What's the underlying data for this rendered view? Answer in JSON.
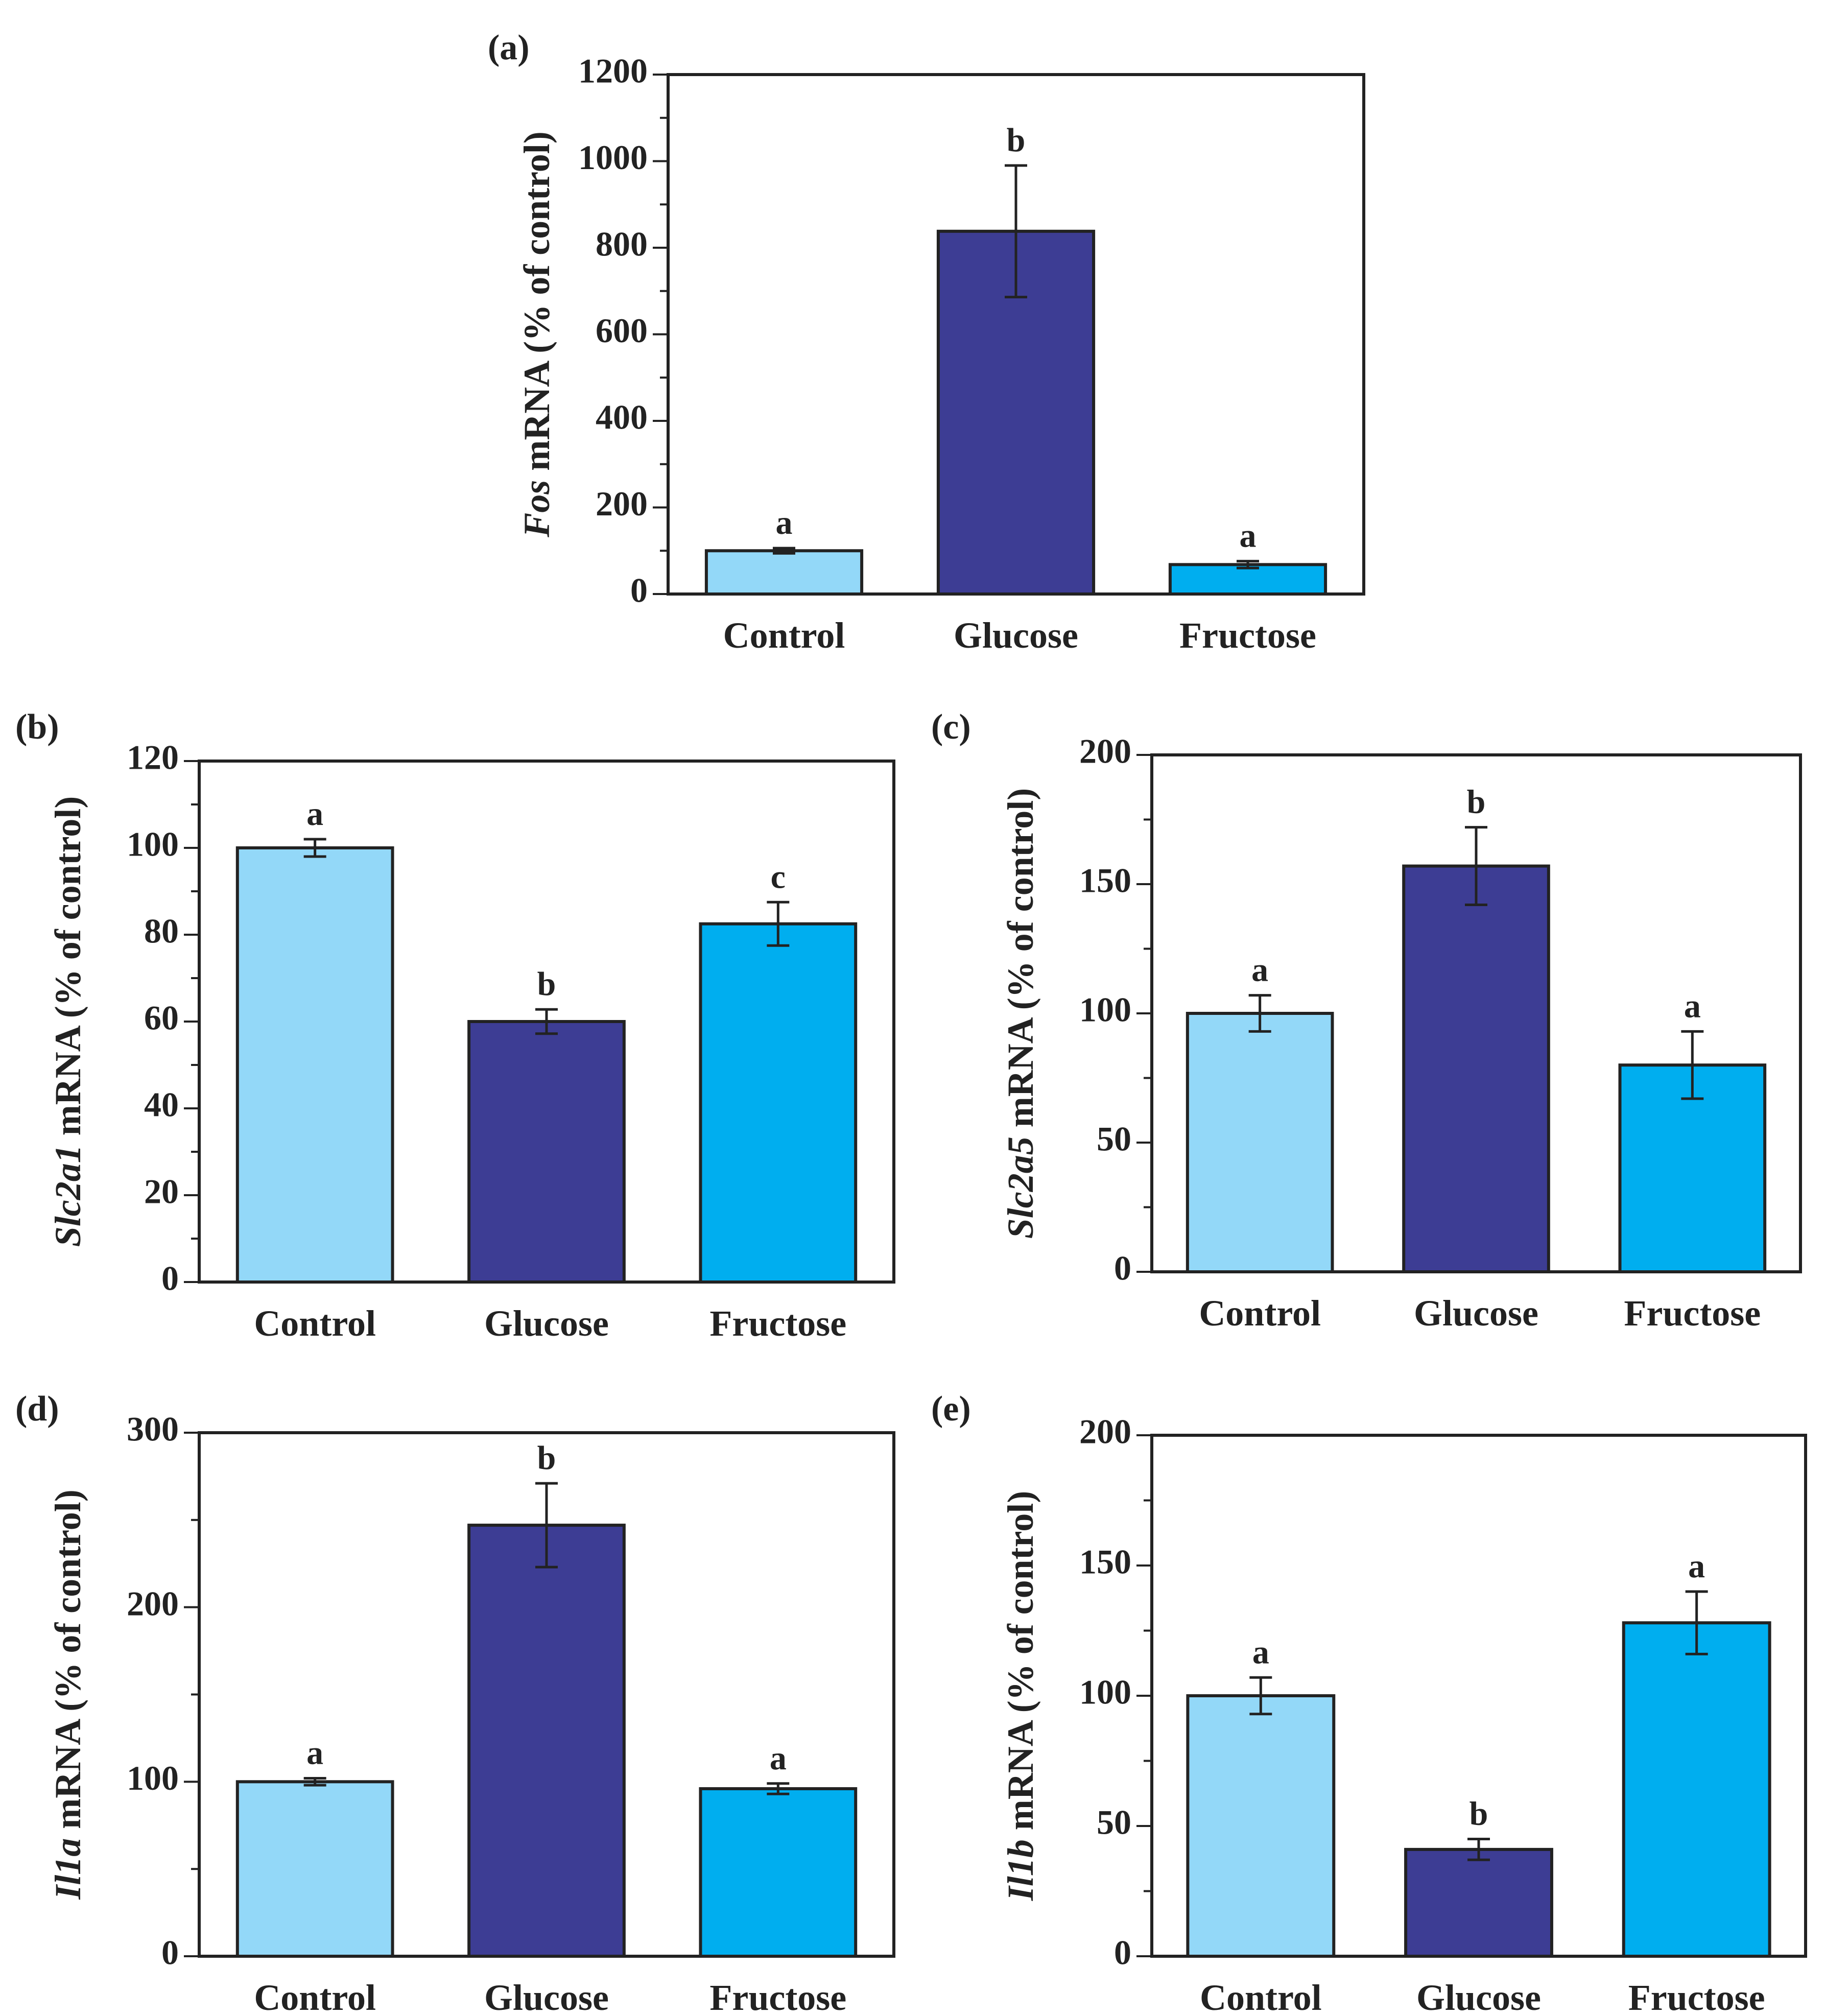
{
  "chart_data": [
    {
      "id": "a",
      "type": "bar",
      "panel_label": "(a)",
      "categories": [
        "Control",
        "Glucose",
        "Fructose"
      ],
      "values": [
        100,
        838,
        68
      ],
      "errors": [
        6,
        152,
        8
      ],
      "significance": [
        "a",
        "b",
        "a"
      ],
      "ylabel_italic": "Fos",
      "ylabel_rest": " mRNA (% of control)",
      "ylim": [
        0,
        1200
      ],
      "yticks": [
        0,
        200,
        400,
        600,
        800,
        1000,
        1200
      ],
      "minor_step": 100,
      "colors": [
        "#93d8f8",
        "#3d3d94",
        "#00aeef"
      ]
    },
    {
      "id": "b",
      "type": "bar",
      "panel_label": "(b)",
      "categories": [
        "Control",
        "Glucose",
        "Fructose"
      ],
      "values": [
        100,
        60,
        82.5
      ],
      "errors": [
        2,
        2.8,
        5
      ],
      "significance": [
        "a",
        "b",
        "c"
      ],
      "ylabel_italic": "Slc2a1",
      "ylabel_rest": " mRNA (% of control)",
      "ylim": [
        0,
        120
      ],
      "yticks": [
        0,
        20,
        40,
        60,
        80,
        100,
        120
      ],
      "minor_step": 10,
      "colors": [
        "#93d8f8",
        "#3d3d94",
        "#00aeef"
      ]
    },
    {
      "id": "c",
      "type": "bar",
      "panel_label": "(c)",
      "categories": [
        "Control",
        "Glucose",
        "Fructose"
      ],
      "values": [
        100,
        157,
        80
      ],
      "errors": [
        7,
        15,
        13
      ],
      "significance": [
        "a",
        "b",
        "a"
      ],
      "ylabel_italic": "Slc2a5",
      "ylabel_rest": " mRNA (% of control)",
      "ylim": [
        0,
        200
      ],
      "yticks": [
        0,
        50,
        100,
        150,
        200
      ],
      "minor_step": 25,
      "colors": [
        "#93d8f8",
        "#3d3d94",
        "#00aeef"
      ]
    },
    {
      "id": "d",
      "type": "bar",
      "panel_label": "(d)",
      "categories": [
        "Control",
        "Glucose",
        "Fructose"
      ],
      "values": [
        100,
        247,
        96
      ],
      "errors": [
        2,
        24,
        3
      ],
      "significance": [
        "a",
        "b",
        "a"
      ],
      "ylabel_italic": "Il1a",
      "ylabel_rest": " mRNA (% of control)",
      "ylim": [
        0,
        300
      ],
      "yticks": [
        0,
        100,
        200,
        300
      ],
      "minor_step": 50,
      "colors": [
        "#93d8f8",
        "#3d3d94",
        "#00aeef"
      ]
    },
    {
      "id": "e",
      "type": "bar",
      "panel_label": "(e)",
      "categories": [
        "Control",
        "Glucose",
        "Fructose"
      ],
      "values": [
        100,
        41,
        128
      ],
      "errors": [
        7,
        4,
        12
      ],
      "significance": [
        "a",
        "b",
        "a"
      ],
      "ylabel_italic": "Il1b",
      "ylabel_rest": " mRNA (% of control)",
      "ylim": [
        0,
        200
      ],
      "yticks": [
        0,
        50,
        100,
        150,
        200
      ],
      "minor_step": 25,
      "colors": [
        "#93d8f8",
        "#3d3d94",
        "#00aeef"
      ]
    }
  ]
}
